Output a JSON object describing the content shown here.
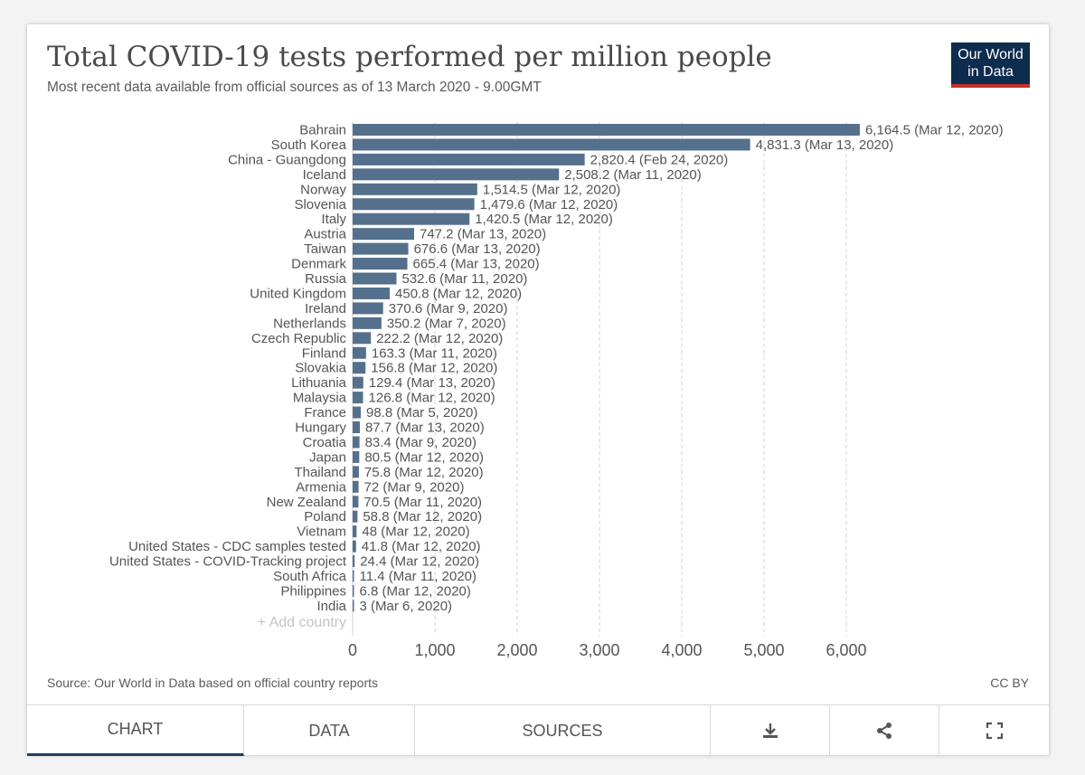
{
  "header": {
    "title": "Total COVID-19 tests performed per million people",
    "subtitle": "Most recent data available from official sources as of 13 March 2020 - 9.00GMT",
    "logo_line1": "Our World",
    "logo_line2": "in Data"
  },
  "chart_data": {
    "type": "bar",
    "orientation": "horizontal",
    "title": "Total COVID-19 tests performed per million people",
    "xlim": [
      0,
      6000
    ],
    "x_ticks": [
      "0",
      "1,000",
      "2,000",
      "3,000",
      "4,000",
      "5,000",
      "6,000"
    ],
    "x_tick_values": [
      0,
      1000,
      2000,
      3000,
      4000,
      5000,
      6000
    ],
    "bar_color": "#55708c",
    "categories": [
      "Bahrain",
      "South Korea",
      "China - Guangdong",
      "Iceland",
      "Norway",
      "Slovenia",
      "Italy",
      "Austria",
      "Taiwan",
      "Denmark",
      "Russia",
      "United Kingdom",
      "Ireland",
      "Netherlands",
      "Czech Republic",
      "Finland",
      "Slovakia",
      "Lithuania",
      "Malaysia",
      "France",
      "Hungary",
      "Croatia",
      "Japan",
      "Thailand",
      "Armenia",
      "New Zealand",
      "Poland",
      "Vietnam",
      "United States - CDC samples tested",
      "United States - COVID-Tracking project",
      "South Africa",
      "Philippines",
      "India"
    ],
    "values": [
      6164.5,
      4831.3,
      2820.4,
      2508.2,
      1514.5,
      1479.6,
      1420.5,
      747.2,
      676.6,
      665.4,
      532.6,
      450.8,
      370.6,
      350.2,
      222.2,
      163.3,
      156.8,
      129.4,
      126.8,
      98.8,
      87.7,
      83.4,
      80.5,
      75.8,
      72,
      70.5,
      58.8,
      48,
      41.8,
      24.4,
      11.4,
      6.8,
      3
    ],
    "labels": [
      "6,164.5 (Mar 12, 2020)",
      "4,831.3 (Mar 13, 2020)",
      "2,820.4 (Feb 24, 2020)",
      "2,508.2 (Mar 11, 2020)",
      "1,514.5 (Mar 12, 2020)",
      "1,479.6 (Mar 12, 2020)",
      "1,420.5 (Mar 12, 2020)",
      "747.2 (Mar 13, 2020)",
      "676.6 (Mar 13, 2020)",
      "665.4 (Mar 13, 2020)",
      "532.6 (Mar 11, 2020)",
      "450.8 (Mar 12, 2020)",
      "370.6 (Mar 9, 2020)",
      "350.2 (Mar 7, 2020)",
      "222.2 (Mar 12, 2020)",
      "163.3 (Mar 11, 2020)",
      "156.8 (Mar 12, 2020)",
      "129.4 (Mar 13, 2020)",
      "126.8 (Mar 12, 2020)",
      "98.8 (Mar 5, 2020)",
      "87.7 (Mar 13, 2020)",
      "83.4 (Mar 9, 2020)",
      "80.5 (Mar 12, 2020)",
      "75.8 (Mar 12, 2020)",
      "72 (Mar 9, 2020)",
      "70.5 (Mar 11, 2020)",
      "58.8 (Mar 12, 2020)",
      "48 (Mar 12, 2020)",
      "41.8 (Mar 12, 2020)",
      "24.4 (Mar 12, 2020)",
      "11.4 (Mar 11, 2020)",
      "6.8 (Mar 12, 2020)",
      "3 (Mar 6, 2020)"
    ],
    "add_country_label": "+ Add country"
  },
  "footer": {
    "source": "Source: Our World in Data based on official country reports",
    "license": "CC BY"
  },
  "tabs": [
    {
      "label": "CHART"
    },
    {
      "label": "DATA"
    },
    {
      "label": "SOURCES"
    },
    {
      "label": "download-icon"
    },
    {
      "label": "share-icon"
    },
    {
      "label": "fullscreen-icon"
    }
  ]
}
